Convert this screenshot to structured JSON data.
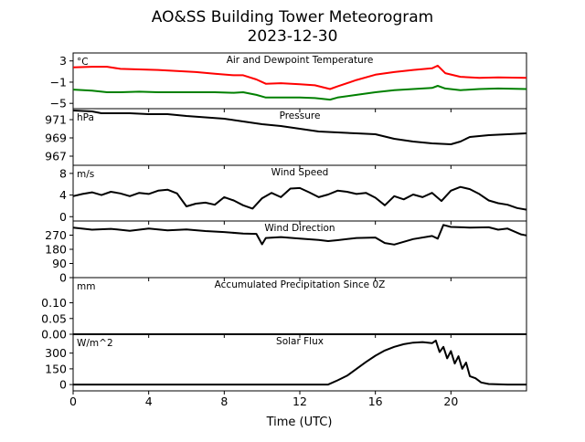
{
  "title": "AO&SS Building Tower Meteorogram",
  "subtitle": "2023-12-30",
  "xlabel": "Time (UTC)",
  "colors": {
    "temperature": "#ff0000",
    "dewpoint": "#008000",
    "line": "#000000"
  },
  "chart_data": [
    {
      "type": "line",
      "panel_title": "Air and Dewpoint Temperature",
      "unit": "°C",
      "ylim": [
        -6,
        4.5
      ],
      "yticks": [
        3,
        -1,
        -5
      ],
      "xticks": [
        0,
        4,
        8,
        12,
        16,
        20
      ],
      "xlim": [
        0,
        24
      ],
      "series": [
        {
          "name": "",
          "color": "red",
          "x": [
            0,
            1,
            1.8,
            2.5,
            3.5,
            4.5,
            5.5,
            6.5,
            7.5,
            8.5,
            9,
            9.7,
            10.2,
            11,
            12,
            12.8,
            13.6,
            14,
            15,
            16,
            17,
            18,
            19,
            19.3,
            19.7,
            20.5,
            21.5,
            22.5,
            24
          ],
          "y": [
            1.8,
            1.9,
            1.9,
            1.5,
            1.4,
            1.3,
            1.1,
            0.9,
            0.6,
            0.3,
            0.3,
            -0.5,
            -1.3,
            -1.2,
            -1.4,
            -1.6,
            -2.3,
            -1.8,
            -0.6,
            0.4,
            0.9,
            1.3,
            1.6,
            2.1,
            0.7,
            0.0,
            -0.2,
            -0.1,
            -0.2
          ]
        },
        {
          "name": "",
          "color": "green",
          "x": [
            0,
            1,
            1.8,
            2.5,
            3.5,
            4.5,
            5.5,
            6.5,
            7.5,
            8.5,
            9,
            9.7,
            10.2,
            11,
            12,
            12.8,
            13.6,
            14,
            15,
            16,
            17,
            18,
            19,
            19.3,
            19.7,
            20.5,
            21.5,
            22.5,
            24
          ],
          "y": [
            -2.4,
            -2.6,
            -2.9,
            -2.9,
            -2.8,
            -2.9,
            -2.9,
            -2.9,
            -2.9,
            -3.0,
            -2.9,
            -3.4,
            -3.9,
            -3.9,
            -3.9,
            -4.0,
            -4.3,
            -3.9,
            -3.4,
            -2.9,
            -2.5,
            -2.3,
            -2.1,
            -1.7,
            -2.2,
            -2.5,
            -2.3,
            -2.2,
            -2.3
          ]
        }
      ]
    },
    {
      "type": "line",
      "panel_title": "Pressure",
      "unit": "hPa",
      "ylim": [
        966,
        972.2
      ],
      "yticks": [
        971,
        969,
        967
      ],
      "xticks": [
        0,
        4,
        8,
        12,
        16,
        20
      ],
      "xlim": [
        0,
        24
      ],
      "series": [
        {
          "name": "",
          "color": "black",
          "x": [
            0,
            1,
            1.5,
            3,
            4,
            5,
            6,
            8,
            9,
            10,
            11,
            12,
            13,
            14,
            15,
            16,
            17,
            18,
            19,
            20,
            20.5,
            21,
            22,
            23,
            24
          ],
          "y": [
            972,
            971.9,
            971.7,
            971.7,
            971.6,
            971.6,
            971.4,
            971.1,
            970.8,
            970.5,
            970.3,
            970.0,
            969.7,
            969.6,
            969.5,
            969.4,
            968.9,
            968.6,
            968.4,
            968.3,
            968.6,
            969.1,
            969.3,
            969.4,
            969.5
          ]
        }
      ]
    },
    {
      "type": "line",
      "panel_title": "Wind Speed",
      "unit": "m/s",
      "ylim": [
        -0.8,
        9.5
      ],
      "yticks": [
        8,
        4,
        0
      ],
      "xticks": [
        0,
        4,
        8,
        12,
        16,
        20
      ],
      "xlim": [
        0,
        24
      ],
      "series": [
        {
          "name": "",
          "color": "black",
          "x": [
            0,
            0.5,
            1,
            1.5,
            2,
            2.5,
            3,
            3.5,
            4,
            4.5,
            5,
            5.5,
            6,
            6.5,
            7,
            7.5,
            8,
            8.5,
            9,
            9.5,
            10,
            10.5,
            11,
            11.5,
            12,
            12.5,
            13,
            13.5,
            14,
            14.5,
            15,
            15.5,
            16,
            16.5,
            17,
            17.5,
            18,
            18.5,
            19,
            19.5,
            20,
            20.5,
            21,
            21.5,
            22,
            22.5,
            23,
            23.5,
            24
          ],
          "y": [
            3.8,
            4.2,
            4.5,
            4.0,
            4.6,
            4.3,
            3.8,
            4.4,
            4.2,
            4.8,
            5.0,
            4.3,
            1.9,
            2.4,
            2.6,
            2.2,
            3.6,
            3.0,
            2.1,
            1.5,
            3.4,
            4.4,
            3.6,
            5.2,
            5.3,
            4.5,
            3.6,
            4.1,
            4.8,
            4.6,
            4.2,
            4.4,
            3.5,
            2.1,
            3.8,
            3.2,
            4.1,
            3.6,
            4.4,
            2.9,
            4.8,
            5.5,
            5.1,
            4.2,
            3.0,
            2.5,
            2.2,
            1.6,
            1.3
          ]
        }
      ]
    },
    {
      "type": "line",
      "panel_title": "Wind Direction",
      "unit": "",
      "ylim": [
        0,
        360
      ],
      "yticks": [
        270,
        180,
        90,
        0
      ],
      "xticks": [
        0,
        4,
        8,
        12,
        16,
        20
      ],
      "xlim": [
        0,
        24
      ],
      "series": [
        {
          "name": "",
          "color": "black",
          "x": [
            0,
            1,
            2,
            3,
            4,
            5,
            6,
            7,
            8,
            9,
            9.7,
            10,
            10.2,
            11,
            12,
            13,
            13.5,
            14,
            15,
            16,
            16.5,
            17,
            18,
            19,
            19.3,
            19.6,
            20,
            21,
            22,
            22.5,
            23,
            23.7,
            24
          ],
          "y": [
            318,
            305,
            310,
            298,
            312,
            300,
            306,
            296,
            290,
            280,
            278,
            212,
            252,
            258,
            248,
            240,
            232,
            238,
            252,
            255,
            220,
            210,
            245,
            265,
            248,
            335,
            322,
            318,
            320,
            305,
            312,
            275,
            268
          ]
        }
      ]
    },
    {
      "type": "line",
      "panel_title": "Accumulated Precipitation Since 0Z",
      "unit": "mm",
      "ylim": [
        0,
        0.18
      ],
      "yticks": [
        0.1,
        0.05,
        0.0
      ],
      "ytick_labels": [
        "0.10",
        "0.05",
        "0.00"
      ],
      "xticks": [
        0,
        4,
        8,
        12,
        16,
        20
      ],
      "xlim": [
        0,
        24
      ],
      "series": [
        {
          "name": "",
          "color": "black",
          "x": [
            0,
            24
          ],
          "y": [
            0,
            0
          ]
        }
      ]
    },
    {
      "type": "line",
      "panel_title": "Solar Flux",
      "unit": "W/m^2",
      "ylim": [
        -60,
        480
      ],
      "yticks": [
        300,
        150,
        0
      ],
      "xticks": [
        0,
        4,
        8,
        12,
        16,
        20
      ],
      "xlim": [
        0,
        24
      ],
      "xtick_labels": [
        "0",
        "4",
        "8",
        "12",
        "16",
        "20"
      ],
      "series": [
        {
          "name": "",
          "color": "black",
          "x": [
            0,
            13.5,
            14,
            14.5,
            15,
            15.5,
            16,
            16.5,
            17,
            17.5,
            18,
            18.5,
            19,
            19.2,
            19.4,
            19.6,
            19.8,
            20,
            20.2,
            20.4,
            20.6,
            20.8,
            21,
            21.3,
            21.6,
            22,
            23,
            24
          ],
          "y": [
            0,
            0,
            40,
            85,
            150,
            215,
            275,
            325,
            360,
            385,
            400,
            405,
            395,
            420,
            310,
            360,
            250,
            320,
            200,
            270,
            150,
            210,
            80,
            60,
            20,
            5,
            0,
            0
          ]
        }
      ]
    }
  ]
}
